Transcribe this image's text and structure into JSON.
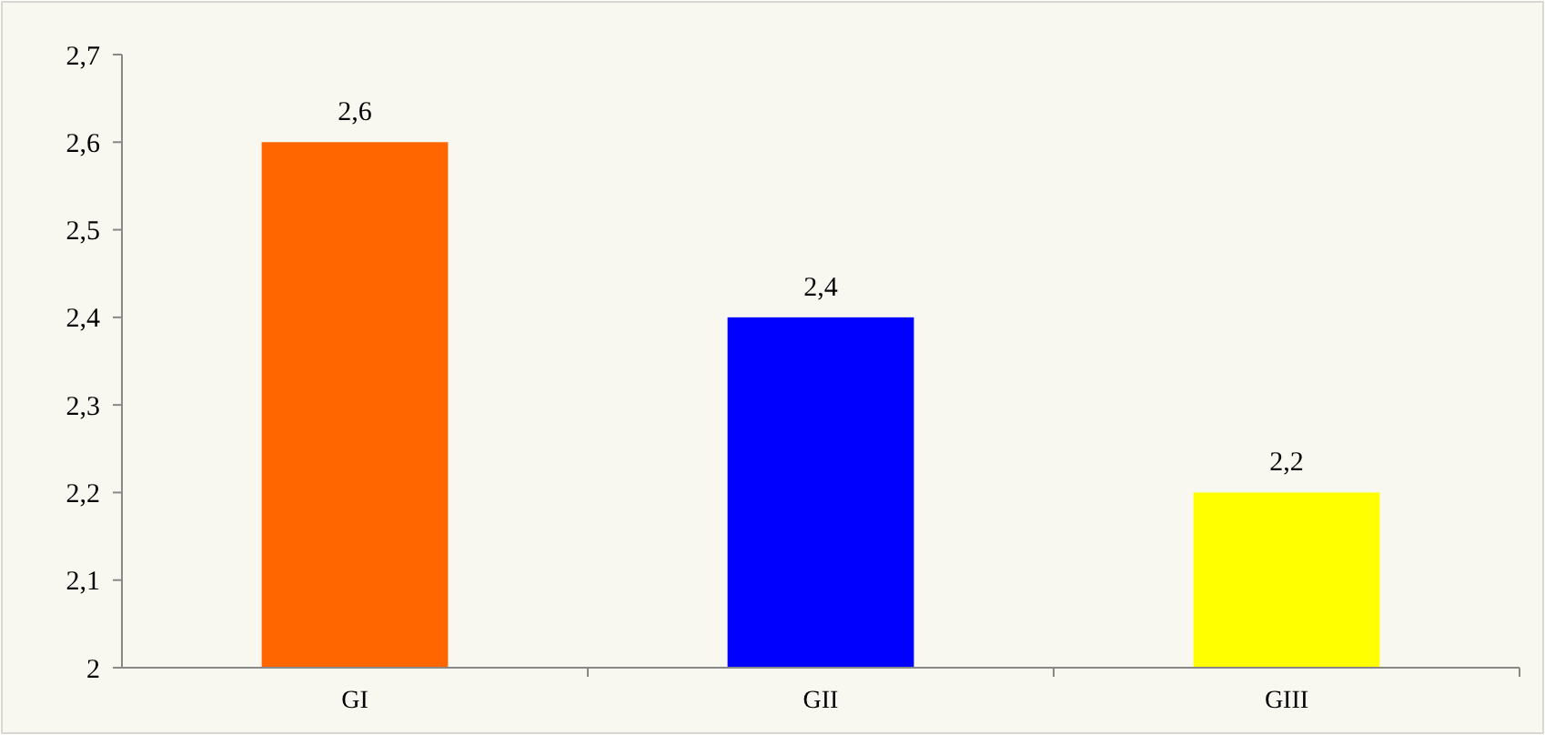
{
  "chart_data": {
    "type": "bar",
    "categories": [
      "GI",
      "GII",
      "GIII"
    ],
    "values": [
      2.6,
      2.4,
      2.2
    ],
    "colors": [
      "#ff6600",
      "#0000ff",
      "#ffff00"
    ],
    "value_labels": [
      "2,6",
      "2,4",
      "2,2"
    ],
    "ylim": [
      2,
      2.7
    ],
    "yticks": [
      2,
      {
        "value": 2.1,
        "label": "2,1"
      },
      {
        "value": 2.2,
        "label": "2,2"
      },
      {
        "value": 2.3,
        "label": "2,3"
      },
      {
        "value": 2.4,
        "label": "2,4"
      },
      {
        "value": 2.5,
        "label": "2,5"
      },
      {
        "value": 2.6,
        "label": "2,6"
      },
      {
        "value": 2.7,
        "label": "2,7"
      }
    ],
    "grid": false
  }
}
